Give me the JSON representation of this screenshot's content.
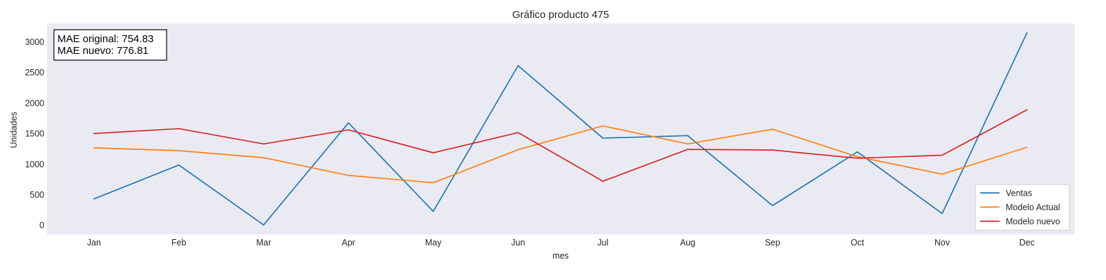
{
  "chart_data": {
    "type": "line",
    "title": "Gráfico producto 475",
    "xlabel": "mes",
    "ylabel": "Unidades",
    "categories": [
      "Jan",
      "Feb",
      "Mar",
      "Apr",
      "May",
      "Jun",
      "Jul",
      "Aug",
      "Sep",
      "Oct",
      "Nov",
      "Dec"
    ],
    "yticks": [
      0,
      500,
      1000,
      1500,
      2000,
      2500,
      3000
    ],
    "ylim": [
      -150,
      3300
    ],
    "grid": false,
    "legend_position": "bottom-right",
    "series": [
      {
        "name": "Ventas",
        "color": "#1f77b4",
        "values": [
          430,
          985,
          5,
          1675,
          225,
          2610,
          1425,
          1465,
          320,
          1200,
          190,
          3150
        ]
      },
      {
        "name": "Modelo Actual",
        "color": "#ff7f0e",
        "values": [
          1265,
          1220,
          1105,
          815,
          695,
          1235,
          1625,
          1330,
          1570,
          1120,
          835,
          1275
        ]
      },
      {
        "name": "Modelo nuevo",
        "color": "#d62728",
        "values": [
          1500,
          1580,
          1330,
          1560,
          1185,
          1515,
          720,
          1240,
          1230,
          1095,
          1145,
          1890
        ]
      }
    ],
    "annotation": {
      "line1": "MAE original: 754.83",
      "line2": "MAE nuevo: 776.81"
    }
  }
}
